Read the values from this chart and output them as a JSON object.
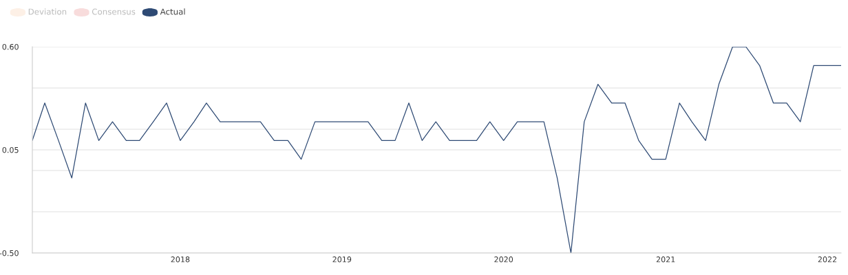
{
  "chart_data": {
    "type": "line",
    "x": [
      "2017-02",
      "2017-03",
      "2017-04",
      "2017-05",
      "2017-06",
      "2017-07",
      "2017-08",
      "2017-09",
      "2017-10",
      "2017-11",
      "2017-12",
      "2018-01",
      "2018-02",
      "2018-03",
      "2018-04",
      "2018-05",
      "2018-06",
      "2018-07",
      "2018-08",
      "2018-09",
      "2018-10",
      "2018-11",
      "2018-12",
      "2019-01",
      "2019-02",
      "2019-03",
      "2019-04",
      "2019-05",
      "2019-06",
      "2019-07",
      "2019-08",
      "2019-09",
      "2019-10",
      "2019-11",
      "2019-12",
      "2020-01",
      "2020-02",
      "2020-03",
      "2020-04",
      "2020-05",
      "2020-06",
      "2020-07",
      "2020-08",
      "2020-09",
      "2020-10",
      "2020-11",
      "2020-12",
      "2021-01",
      "2021-02",
      "2021-03",
      "2021-04",
      "2021-05",
      "2021-06",
      "2021-07",
      "2021-08",
      "2021-09",
      "2021-10",
      "2021-11",
      "2021-12",
      "2022-01",
      "2022-02"
    ],
    "series": [
      {
        "name": "Deviation",
        "color": "#fdf0e6",
        "values": [
          null,
          null,
          null,
          null,
          null,
          null,
          null,
          null,
          null,
          null,
          null,
          null,
          null,
          null,
          null,
          null,
          null,
          null,
          null,
          null,
          null,
          null,
          null,
          null,
          null,
          null,
          null,
          null,
          null,
          null,
          null,
          null,
          null,
          null,
          null,
          null,
          null,
          null,
          null,
          null,
          null,
          null,
          null,
          null,
          null,
          null,
          null,
          null,
          null,
          null,
          null,
          null,
          null,
          null,
          null,
          null,
          null,
          null,
          null,
          null,
          null
        ]
      },
      {
        "name": "Consensus",
        "color": "#f8dcdc",
        "values": [
          null,
          null,
          null,
          null,
          null,
          null,
          null,
          null,
          null,
          null,
          null,
          null,
          null,
          null,
          null,
          null,
          null,
          null,
          null,
          null,
          null,
          null,
          null,
          null,
          null,
          null,
          null,
          null,
          null,
          null,
          null,
          null,
          null,
          null,
          null,
          null,
          null,
          null,
          null,
          null,
          null,
          null,
          null,
          null,
          null,
          null,
          null,
          null,
          null,
          null,
          null,
          null,
          null,
          null,
          null,
          null,
          null,
          null,
          null,
          null,
          null
        ]
      },
      {
        "name": "Actual",
        "color": "#2e4a74",
        "values": [
          0.1,
          0.3,
          0.1,
          -0.1,
          0.3,
          0.1,
          0.2,
          0.1,
          0.1,
          0.2,
          0.3,
          0.1,
          0.2,
          0.3,
          0.2,
          0.2,
          0.2,
          0.2,
          0.1,
          0.1,
          0.0,
          0.2,
          0.2,
          0.2,
          0.2,
          0.2,
          0.1,
          0.1,
          0.3,
          0.1,
          0.2,
          0.1,
          0.1,
          0.1,
          0.2,
          0.1,
          0.2,
          0.2,
          0.2,
          -0.1,
          -0.5,
          0.2,
          0.4,
          0.3,
          0.3,
          0.1,
          0.0,
          0.0,
          0.3,
          0.2,
          0.1,
          0.4,
          0.6,
          0.6,
          0.5,
          0.3,
          0.3,
          0.2,
          0.5,
          0.5,
          0.5
        ]
      }
    ],
    "xlim": [
      "2017-02",
      "2022-02"
    ],
    "xticks": [
      {
        "value": "2018-01",
        "label": "2018"
      },
      {
        "value": "2019-01",
        "label": "2019"
      },
      {
        "value": "2020-01",
        "label": "2020"
      },
      {
        "value": "2021-01",
        "label": "2021"
      },
      {
        "value": "2022-01",
        "label": "2022"
      }
    ],
    "ylim": [
      -0.5,
      0.6
    ],
    "yticks": [
      {
        "value": 0.6,
        "label": "0.60"
      },
      {
        "value": 0.38,
        "label": null
      },
      {
        "value": 0.16,
        "label": null
      },
      {
        "value": 0.05,
        "label": "0.05"
      },
      {
        "value": -0.06,
        "label": null
      },
      {
        "value": -0.28,
        "label": null
      },
      {
        "value": -0.5,
        "label": "-0.50"
      }
    ],
    "grid": "y",
    "legend": "top left",
    "line_style": "solid",
    "marker": "none"
  }
}
